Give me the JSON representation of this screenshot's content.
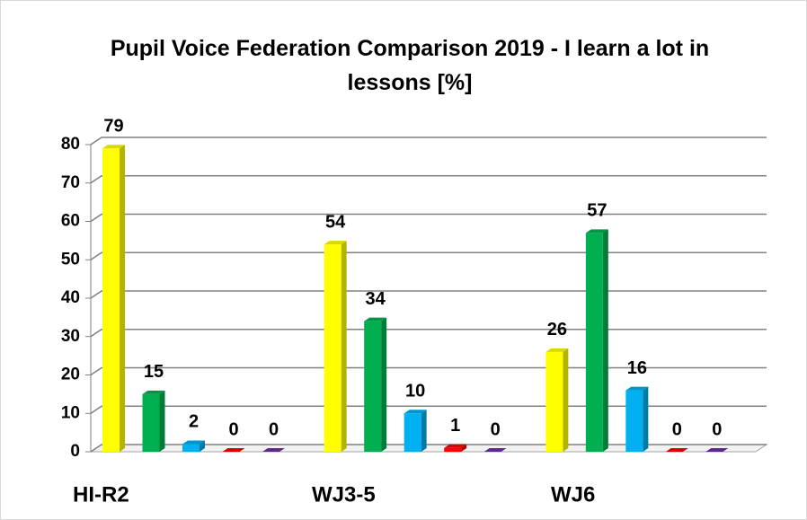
{
  "chart_data": {
    "type": "bar3d",
    "title": "Pupil Voice Federation Comparison  2019 - I learn a lot in lessons [%]",
    "categories": [
      "HI-R2",
      "WJ3-5",
      "WJ6"
    ],
    "series": [
      {
        "color": "#ffff00",
        "values": [
          79,
          54,
          26
        ]
      },
      {
        "color": "#00b050",
        "values": [
          15,
          34,
          57
        ]
      },
      {
        "color": "#00b0f0",
        "values": [
          2,
          10,
          16
        ]
      },
      {
        "color": "#ff0000",
        "values": [
          0,
          1,
          0
        ]
      },
      {
        "color": "#7030a0",
        "values": [
          0,
          0,
          0
        ]
      }
    ],
    "ylim": [
      0,
      80
    ],
    "yticks": [
      0,
      10,
      20,
      30,
      40,
      50,
      60,
      70,
      80
    ],
    "grid": true
  }
}
